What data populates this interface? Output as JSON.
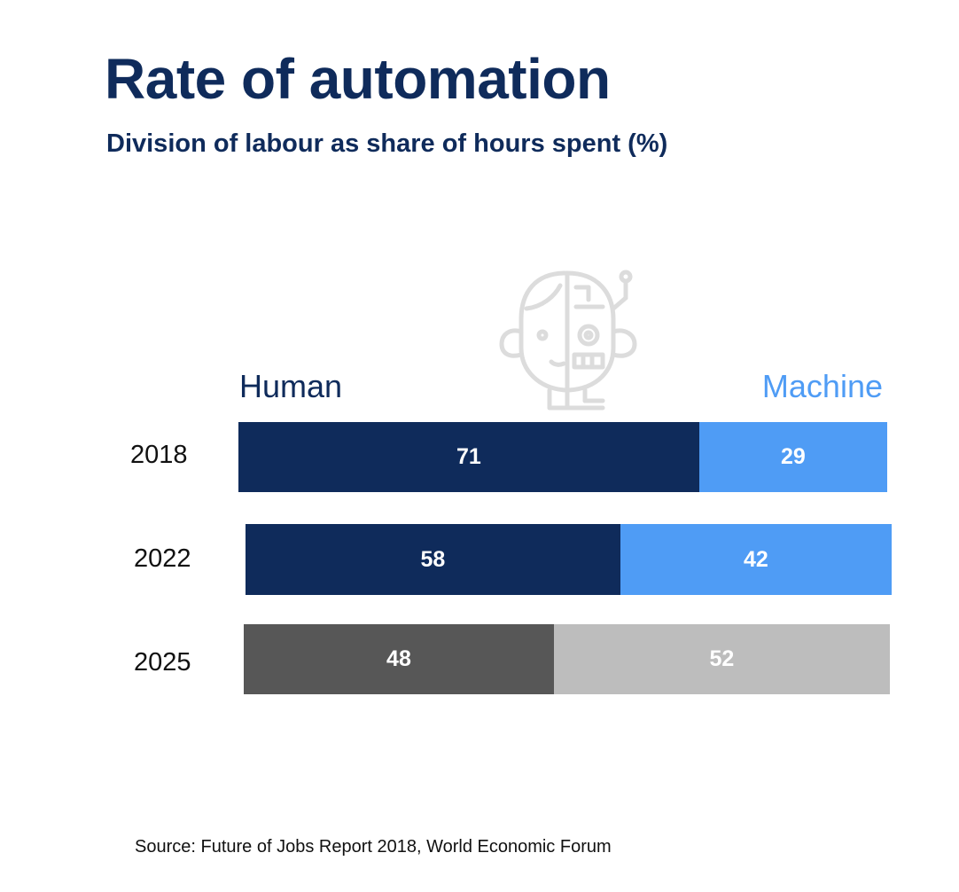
{
  "header": {
    "title": "Rate of automation",
    "subtitle": "Division of labour as share of hours spent (%)"
  },
  "legend": {
    "human": "Human",
    "machine": "Machine"
  },
  "source": "Source: Future of Jobs Report 2018, World Economic Forum",
  "icon": "robot-human-face-icon",
  "colors": {
    "title": "#0f2b5b",
    "human": "#0f2b5b",
    "machine": "#4f9cf5",
    "human_projected": "#575757",
    "machine_projected": "#bdbdbd"
  },
  "chart_data": {
    "type": "bar",
    "orientation": "horizontal",
    "stacked": true,
    "title": "Rate of automation",
    "subtitle": "Division of labour as share of hours spent (%)",
    "categories": [
      "2018",
      "2022",
      "2025"
    ],
    "series": [
      {
        "name": "Human",
        "values": [
          71,
          58,
          48
        ]
      },
      {
        "name": "Machine",
        "values": [
          29,
          42,
          52
        ]
      }
    ],
    "xlim": [
      0,
      100
    ],
    "grid": false,
    "legend_position": "top",
    "data_labels": true
  }
}
